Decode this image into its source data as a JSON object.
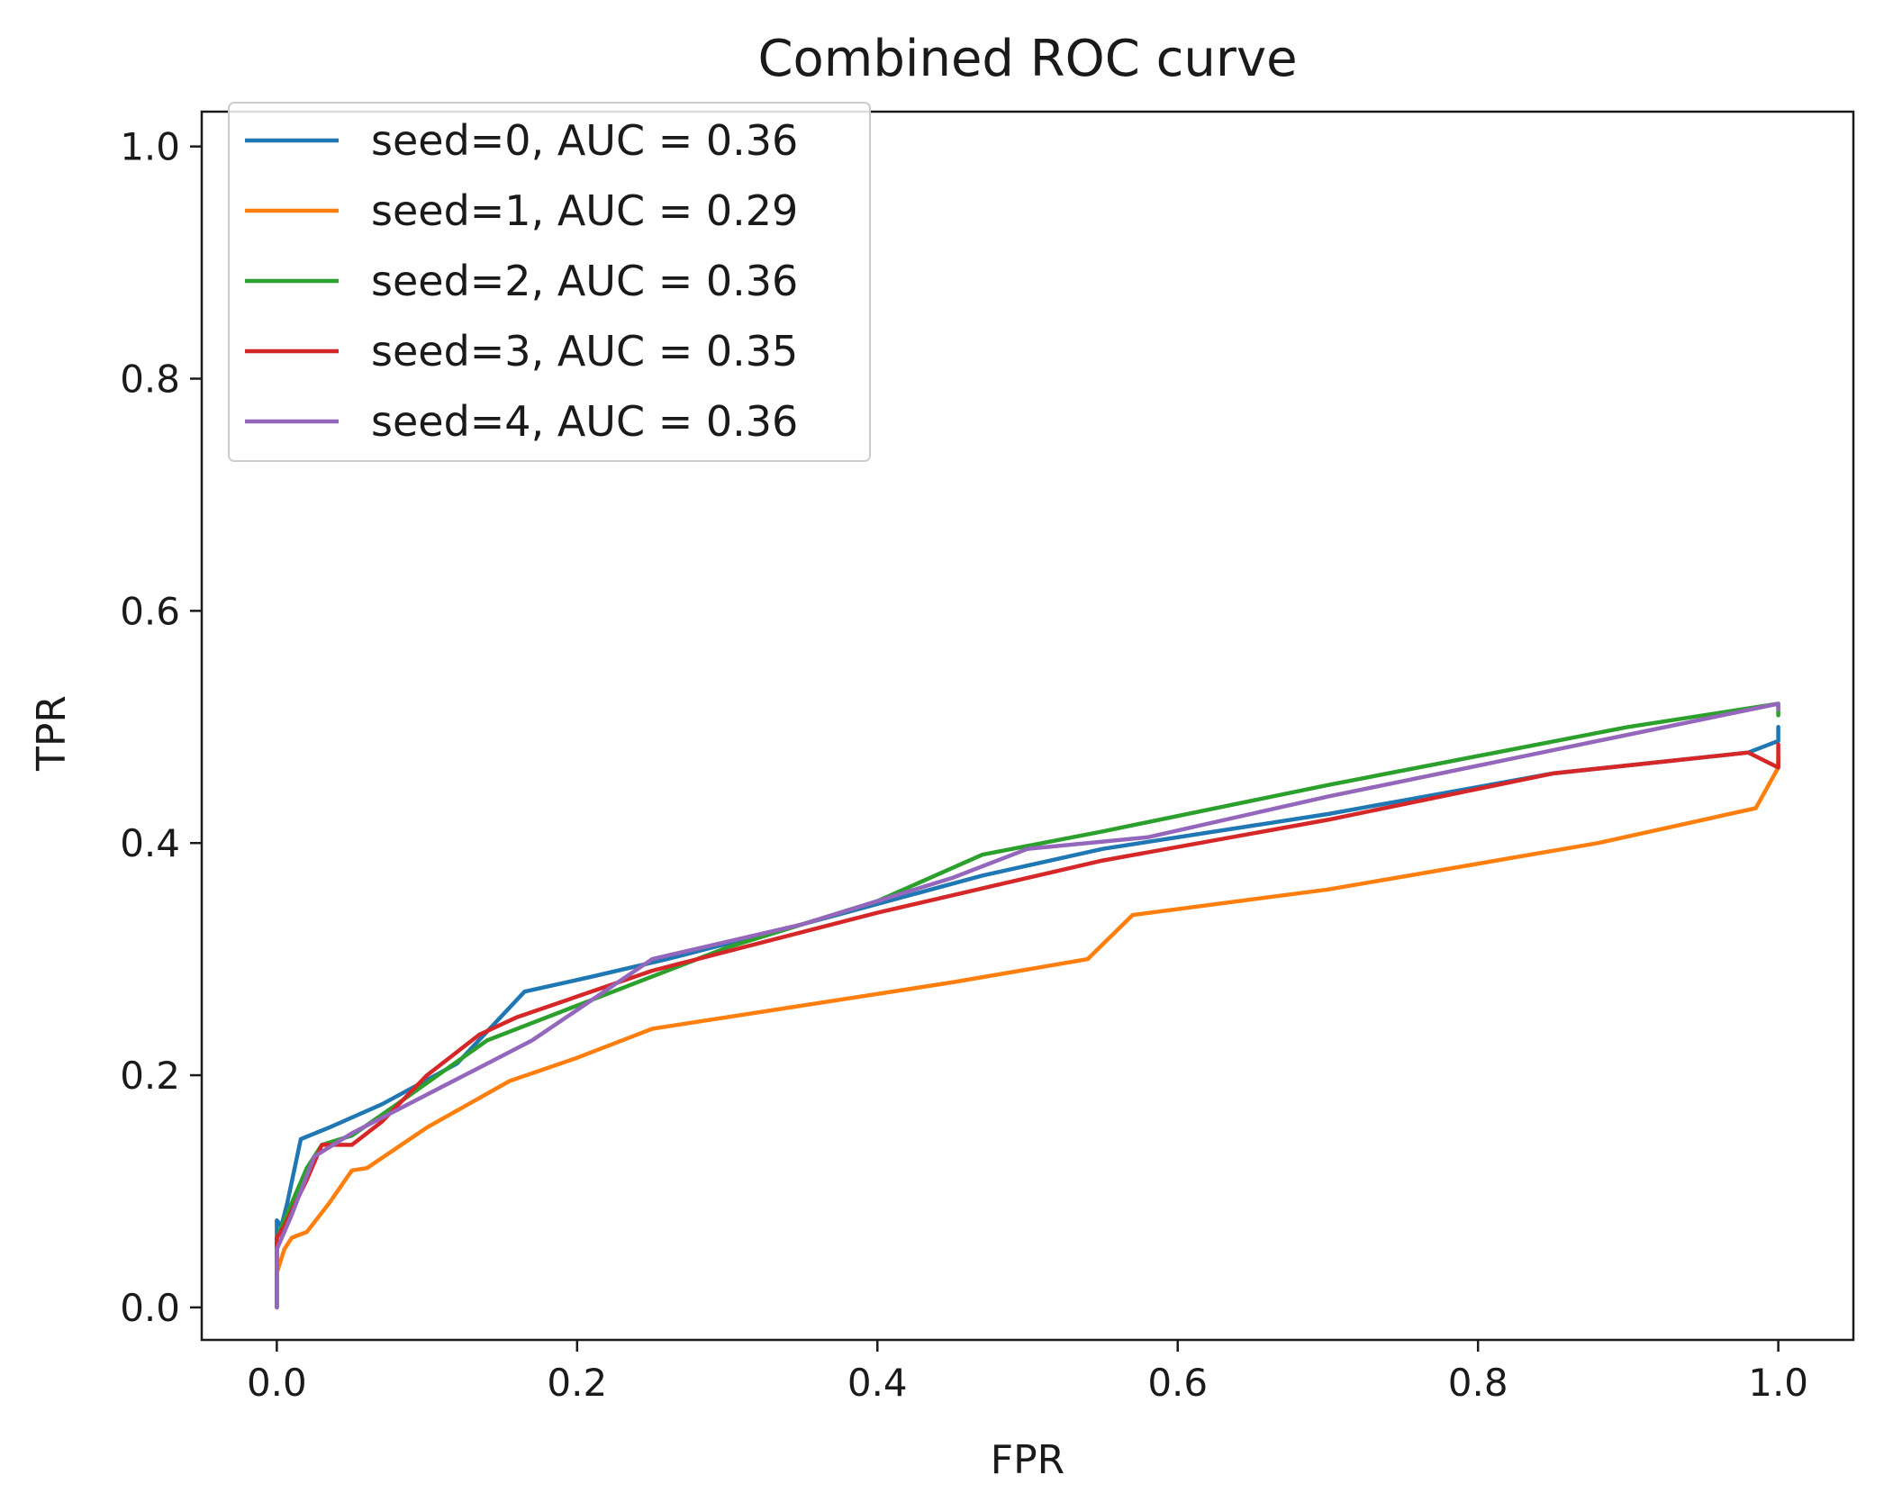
{
  "chart_data": {
    "type": "line",
    "title": "Combined ROC curve",
    "xlabel": "FPR",
    "ylabel": "TPR",
    "xlim": [
      -0.05,
      1.05
    ],
    "ylim": [
      -0.028,
      1.03
    ],
    "xticks": [
      {
        "value": 0.0,
        "label": "0.0"
      },
      {
        "value": 0.2,
        "label": "0.2"
      },
      {
        "value": 0.4,
        "label": "0.4"
      },
      {
        "value": 0.6,
        "label": "0.6"
      },
      {
        "value": 0.8,
        "label": "0.8"
      },
      {
        "value": 1.0,
        "label": "1.0"
      }
    ],
    "yticks": [
      {
        "value": 0.0,
        "label": "0.0"
      },
      {
        "value": 0.2,
        "label": "0.2"
      },
      {
        "value": 0.4,
        "label": "0.4"
      },
      {
        "value": 0.6,
        "label": "0.6"
      },
      {
        "value": 0.8,
        "label": "0.8"
      },
      {
        "value": 1.0,
        "label": "1.0"
      }
    ],
    "grid": false,
    "legend_position": "top-left",
    "series": [
      {
        "name": "seed=0, AUC = 0.36",
        "color": "#1f77b4",
        "x": [
          0.0,
          0.0,
          0.003,
          0.007,
          0.016,
          0.035,
          0.07,
          0.12,
          0.165,
          0.21,
          0.26,
          0.35,
          0.47,
          0.55,
          0.7,
          0.85,
          0.98,
          1.0,
          1.0
        ],
        "y": [
          0.0,
          0.075,
          0.07,
          0.09,
          0.145,
          0.155,
          0.175,
          0.21,
          0.272,
          0.285,
          0.3,
          0.33,
          0.372,
          0.395,
          0.425,
          0.46,
          0.478,
          0.488,
          0.5
        ]
      },
      {
        "name": "seed=1, AUC = 0.29",
        "color": "#ff7f0e",
        "x": [
          0.0,
          0.0,
          0.005,
          0.01,
          0.02,
          0.035,
          0.05,
          0.06,
          0.1,
          0.155,
          0.2,
          0.25,
          0.35,
          0.45,
          0.54,
          0.57,
          0.7,
          0.88,
          0.985,
          1.0,
          1.0
        ],
        "y": [
          0.0,
          0.03,
          0.05,
          0.06,
          0.065,
          0.09,
          0.118,
          0.12,
          0.155,
          0.195,
          0.215,
          0.24,
          0.26,
          0.28,
          0.3,
          0.338,
          0.36,
          0.4,
          0.43,
          0.465,
          0.475
        ]
      },
      {
        "name": "seed=2, AUC = 0.36",
        "color": "#2ca02c",
        "x": [
          0.0,
          0.0,
          0.005,
          0.02,
          0.03,
          0.05,
          0.08,
          0.14,
          0.2,
          0.3,
          0.4,
          0.47,
          0.55,
          0.7,
          0.9,
          1.0,
          1.0
        ],
        "y": [
          0.0,
          0.06,
          0.075,
          0.12,
          0.14,
          0.148,
          0.175,
          0.23,
          0.26,
          0.31,
          0.35,
          0.39,
          0.41,
          0.45,
          0.5,
          0.52,
          0.51
        ]
      },
      {
        "name": "seed=3, AUC = 0.35",
        "color": "#d62728",
        "x": [
          0.0,
          0.0,
          0.005,
          0.02,
          0.03,
          0.05,
          0.07,
          0.1,
          0.135,
          0.16,
          0.25,
          0.4,
          0.55,
          0.7,
          0.85,
          0.98,
          1.0,
          1.0
        ],
        "y": [
          0.0,
          0.06,
          0.07,
          0.11,
          0.14,
          0.14,
          0.16,
          0.2,
          0.235,
          0.25,
          0.29,
          0.34,
          0.385,
          0.42,
          0.46,
          0.478,
          0.465,
          0.485
        ]
      },
      {
        "name": "seed=4, AUC = 0.36",
        "color": "#9467bd",
        "x": [
          0.0,
          0.0,
          0.01,
          0.025,
          0.05,
          0.08,
          0.14,
          0.17,
          0.25,
          0.35,
          0.45,
          0.5,
          0.58,
          0.7,
          0.85,
          1.0,
          1.0
        ],
        "y": [
          0.0,
          0.05,
          0.08,
          0.13,
          0.15,
          0.17,
          0.21,
          0.23,
          0.3,
          0.33,
          0.37,
          0.395,
          0.405,
          0.44,
          0.48,
          0.52,
          0.515
        ]
      }
    ]
  }
}
